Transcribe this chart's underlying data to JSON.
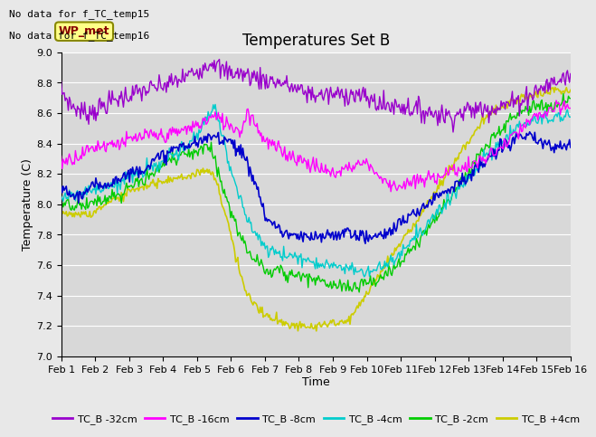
{
  "title": "Temperatures Set B",
  "xlabel": "Time",
  "ylabel": "Temperature (C)",
  "ylim": [
    7.0,
    9.0
  ],
  "yticks": [
    7.0,
    7.2,
    7.4,
    7.6,
    7.8,
    8.0,
    8.2,
    8.4,
    8.6,
    8.8,
    9.0
  ],
  "xlim": [
    0,
    15
  ],
  "xtick_labels": [
    "Feb 1",
    "Feb 2",
    "Feb 3",
    "Feb 4",
    "Feb 5",
    "Feb 6",
    "Feb 7",
    "Feb 8",
    "Feb 9",
    "Feb 10",
    "Feb 11",
    "Feb 12",
    "Feb 13",
    "Feb 14",
    "Feb 15",
    "Feb 16"
  ],
  "note1": "No data for f_TC_temp15",
  "note2": "No data for f_TC_temp16",
  "wp_met_label": "WP_met",
  "legend_entries": [
    "TC_B -32cm",
    "TC_B -16cm",
    "TC_B -8cm",
    "TC_B -4cm",
    "TC_B -2cm",
    "TC_B +4cm"
  ],
  "line_colors": [
    "#9900cc",
    "#ff00ff",
    "#0000cc",
    "#00cccc",
    "#00cc00",
    "#cccc00"
  ],
  "background_color": "#e8e8e8",
  "plot_bg_color": "#d8d8d8",
  "grid_color": "#ffffff",
  "num_points": 500,
  "title_fontsize": 12,
  "legend_fontsize": 8,
  "tick_fontsize": 8
}
